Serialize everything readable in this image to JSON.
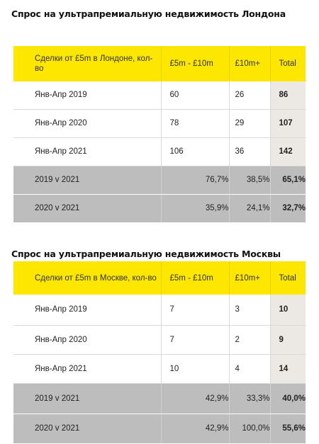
{
  "london": {
    "title": "Спрос на ультрапремиальную недвижимость Лондона",
    "header": [
      "Сделки от £5m в Лондоне, кол-во",
      "£5m - £10m",
      "£10m+",
      "Total"
    ],
    "rows": [
      [
        "Янв-Апр 2019",
        "60",
        "26",
        "86"
      ],
      [
        "Янв-Апр 2020",
        "78",
        "29",
        "107"
      ],
      [
        "Янв-Апр 2021",
        "106",
        "36",
        "142"
      ]
    ],
    "compare": [
      [
        "2019 v 2021",
        "76,7%",
        "38,5%",
        "65,1%"
      ],
      [
        "2020 v 2021",
        "35,9%",
        "24,1%",
        "32,7%"
      ]
    ]
  },
  "moscow": {
    "title": "Спрос на ультрапремиальную недвижимость Москвы",
    "header": [
      "Сделки от £5m в Москве, кол-во",
      "£5m - £10m",
      "£10m+",
      "Total"
    ],
    "rows": [
      [
        "Янв-Апр 2019",
        "7",
        "3",
        "10"
      ],
      [
        "Янв-Апр 2020",
        "7",
        "2",
        "9"
      ],
      [
        "Янв-Апр 2021",
        "10",
        "4",
        "14"
      ]
    ],
    "compare": [
      [
        "2019 v 2021",
        "42,9%",
        "33,3%",
        "40,0%"
      ],
      [
        "2020 v 2021",
        "42,9%",
        "100,0%",
        "55,6%"
      ]
    ]
  },
  "colors": {
    "header_yellow": "#fde600",
    "compare_grey": "#bdbdbd",
    "total_beige": "#ece8e4"
  }
}
